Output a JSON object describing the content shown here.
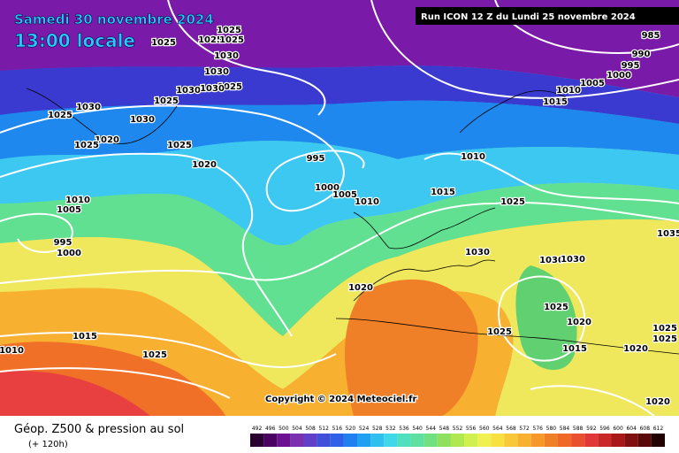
{
  "header": {
    "date": "Samedi 30 novembre 2024",
    "time": "13:00 locale",
    "run": "Run ICON 12 Z du Lundi 25 novembre 2024"
  },
  "copyright": "Copyright © 2024 Meteociel.fr",
  "footer": {
    "title": "Géop. Z500 & pression au sol",
    "subtitle": "(+ 120h)"
  },
  "legend": {
    "labels": [
      "492",
      "496",
      "500",
      "504",
      "508",
      "512",
      "516",
      "520",
      "524",
      "528",
      "532",
      "536",
      "540",
      "544",
      "548",
      "552",
      "556",
      "560",
      "564",
      "568",
      "572",
      "576",
      "580",
      "584",
      "588",
      "592",
      "596",
      "600",
      "604",
      "608",
      "612"
    ]
  },
  "isobar_labels": [
    "1025",
    "1025",
    "1025",
    "1025",
    "1030",
    "1030",
    "1025",
    "1030",
    "1030",
    "1025",
    "1030",
    "1025",
    "1030",
    "1020",
    "1025",
    "1025",
    "1020",
    "995",
    "1000",
    "1005",
    "1010",
    "1010",
    "1005",
    "995",
    "1000",
    "1010",
    "1015",
    "1025",
    "1030",
    "1020",
    "1015",
    "1025",
    "1010",
    "1025",
    "1025",
    "1020",
    "1015",
    "1020",
    "1020",
    "985",
    "990",
    "995",
    "1000",
    "1005",
    "1010",
    "1015",
    "1035",
    "1030",
    "1030",
    "1025",
    "1025"
  ]
}
